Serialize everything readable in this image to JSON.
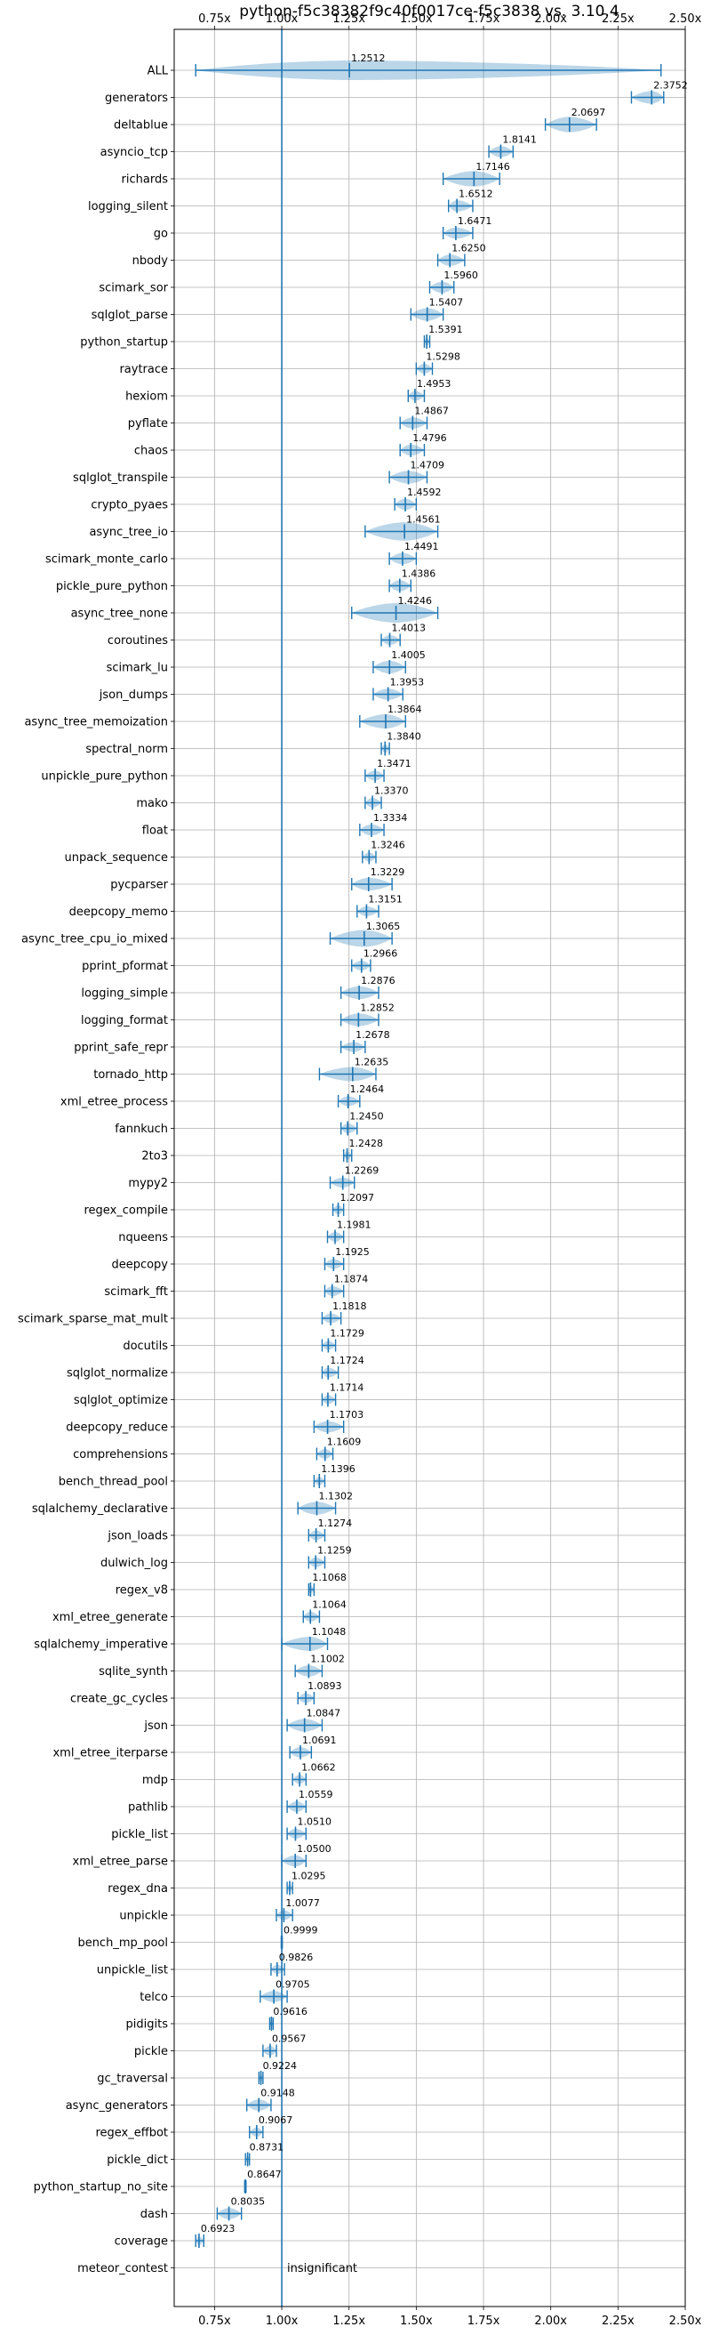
{
  "chart_data": {
    "type": "violin",
    "title": "python-f5c38382f9c40f0017ce-f5c3838 vs. 3.10.4",
    "xlim": [
      0.6,
      2.5
    ],
    "x_ticks": [
      0.75,
      1.0,
      1.25,
      1.5,
      1.75,
      2.0,
      2.25,
      2.5
    ],
    "x_tick_labels": [
      "0.75x",
      "1.00x",
      "1.25x",
      "1.50x",
      "1.75x",
      "2.00x",
      "2.25x",
      "2.50x"
    ],
    "reference_line": 1.0,
    "grid": true,
    "color": "#1f77b4",
    "annotation_text": "insignificant",
    "benchmarks": [
      {
        "name": "ALL",
        "value": 1.2512,
        "label": "1.2512",
        "min": 0.68,
        "max": 2.41,
        "spread": 0.45
      },
      {
        "name": "generators",
        "value": 2.3752,
        "label": "2.3752",
        "min": 2.3,
        "max": 2.42,
        "spread": 0.04
      },
      {
        "name": "deltablue",
        "value": 2.0697,
        "label": "2.0697",
        "min": 1.98,
        "max": 2.17,
        "spread": 0.06
      },
      {
        "name": "asyncio_tcp",
        "value": 1.8141,
        "label": "1.8141",
        "min": 1.77,
        "max": 1.86,
        "spread": 0.03
      },
      {
        "name": "richards",
        "value": 1.7146,
        "label": "1.7146",
        "min": 1.6,
        "max": 1.81,
        "spread": 0.06
      },
      {
        "name": "logging_silent",
        "value": 1.6512,
        "label": "1.6512",
        "min": 1.62,
        "max": 1.71,
        "spread": 0.03
      },
      {
        "name": "go",
        "value": 1.6471,
        "label": "1.6471",
        "min": 1.6,
        "max": 1.71,
        "spread": 0.03
      },
      {
        "name": "nbody",
        "value": 1.625,
        "label": "1.6250",
        "min": 1.58,
        "max": 1.68,
        "spread": 0.03
      },
      {
        "name": "scimark_sor",
        "value": 1.596,
        "label": "1.5960",
        "min": 1.55,
        "max": 1.64,
        "spread": 0.03
      },
      {
        "name": "sqlglot_parse",
        "value": 1.5407,
        "label": "1.5407",
        "min": 1.48,
        "max": 1.6,
        "spread": 0.04
      },
      {
        "name": "python_startup",
        "value": 1.5391,
        "label": "1.5391",
        "min": 1.53,
        "max": 1.55,
        "spread": 0.01
      },
      {
        "name": "raytrace",
        "value": 1.5298,
        "label": "1.5298",
        "min": 1.5,
        "max": 1.56,
        "spread": 0.02
      },
      {
        "name": "hexiom",
        "value": 1.4953,
        "label": "1.4953",
        "min": 1.47,
        "max": 1.53,
        "spread": 0.02
      },
      {
        "name": "pyflate",
        "value": 1.4867,
        "label": "1.4867",
        "min": 1.44,
        "max": 1.54,
        "spread": 0.03
      },
      {
        "name": "chaos",
        "value": 1.4796,
        "label": "1.4796",
        "min": 1.44,
        "max": 1.53,
        "spread": 0.03
      },
      {
        "name": "sqlglot_transpile",
        "value": 1.4709,
        "label": "1.4709",
        "min": 1.4,
        "max": 1.54,
        "spread": 0.04
      },
      {
        "name": "crypto_pyaes",
        "value": 1.4592,
        "label": "1.4592",
        "min": 1.42,
        "max": 1.5,
        "spread": 0.03
      },
      {
        "name": "async_tree_io",
        "value": 1.4561,
        "label": "1.4561",
        "min": 1.31,
        "max": 1.58,
        "spread": 0.08
      },
      {
        "name": "scimark_monte_carlo",
        "value": 1.4491,
        "label": "1.4491",
        "min": 1.4,
        "max": 1.5,
        "spread": 0.03
      },
      {
        "name": "pickle_pure_python",
        "value": 1.4386,
        "label": "1.4386",
        "min": 1.4,
        "max": 1.48,
        "spread": 0.03
      },
      {
        "name": "async_tree_none",
        "value": 1.4246,
        "label": "1.4246",
        "min": 1.26,
        "max": 1.58,
        "spread": 0.09
      },
      {
        "name": "coroutines",
        "value": 1.4013,
        "label": "1.4013",
        "min": 1.37,
        "max": 1.44,
        "spread": 0.02
      },
      {
        "name": "scimark_lu",
        "value": 1.4005,
        "label": "1.4005",
        "min": 1.34,
        "max": 1.46,
        "spread": 0.04
      },
      {
        "name": "json_dumps",
        "value": 1.3953,
        "label": "1.3953",
        "min": 1.34,
        "max": 1.45,
        "spread": 0.03
      },
      {
        "name": "async_tree_memoization",
        "value": 1.3864,
        "label": "1.3864",
        "min": 1.29,
        "max": 1.46,
        "spread": 0.05
      },
      {
        "name": "spectral_norm",
        "value": 1.384,
        "label": "1.3840",
        "min": 1.37,
        "max": 1.4,
        "spread": 0.01
      },
      {
        "name": "unpickle_pure_python",
        "value": 1.3471,
        "label": "1.3471",
        "min": 1.31,
        "max": 1.38,
        "spread": 0.02
      },
      {
        "name": "mako",
        "value": 1.337,
        "label": "1.3370",
        "min": 1.31,
        "max": 1.37,
        "spread": 0.02
      },
      {
        "name": "float",
        "value": 1.3334,
        "label": "1.3334",
        "min": 1.29,
        "max": 1.38,
        "spread": 0.03
      },
      {
        "name": "unpack_sequence",
        "value": 1.3246,
        "label": "1.3246",
        "min": 1.3,
        "max": 1.35,
        "spread": 0.015
      },
      {
        "name": "pycparser",
        "value": 1.3229,
        "label": "1.3229",
        "min": 1.26,
        "max": 1.41,
        "spread": 0.04
      },
      {
        "name": "deepcopy_memo",
        "value": 1.3151,
        "label": "1.3151",
        "min": 1.28,
        "max": 1.36,
        "spread": 0.02
      },
      {
        "name": "async_tree_cpu_io_mixed",
        "value": 1.3065,
        "label": "1.3065",
        "min": 1.18,
        "max": 1.41,
        "spread": 0.07
      },
      {
        "name": "pprint_pformat",
        "value": 1.2966,
        "label": "1.2966",
        "min": 1.26,
        "max": 1.33,
        "spread": 0.02
      },
      {
        "name": "logging_simple",
        "value": 1.2876,
        "label": "1.2876",
        "min": 1.22,
        "max": 1.36,
        "spread": 0.04
      },
      {
        "name": "logging_format",
        "value": 1.2852,
        "label": "1.2852",
        "min": 1.22,
        "max": 1.36,
        "spread": 0.04
      },
      {
        "name": "pprint_safe_repr",
        "value": 1.2678,
        "label": "1.2678",
        "min": 1.22,
        "max": 1.31,
        "spread": 0.02
      },
      {
        "name": "tornado_http",
        "value": 1.2635,
        "label": "1.2635",
        "min": 1.14,
        "max": 1.35,
        "spread": 0.05
      },
      {
        "name": "xml_etree_process",
        "value": 1.2464,
        "label": "1.2464",
        "min": 1.21,
        "max": 1.29,
        "spread": 0.02
      },
      {
        "name": "fannkuch",
        "value": 1.245,
        "label": "1.2450",
        "min": 1.22,
        "max": 1.28,
        "spread": 0.02
      },
      {
        "name": "2to3",
        "value": 1.2428,
        "label": "1.2428",
        "min": 1.23,
        "max": 1.26,
        "spread": 0.01
      },
      {
        "name": "mypy2",
        "value": 1.2269,
        "label": "1.2269",
        "min": 1.18,
        "max": 1.27,
        "spread": 0.02
      },
      {
        "name": "regex_compile",
        "value": 1.2097,
        "label": "1.2097",
        "min": 1.19,
        "max": 1.23,
        "spread": 0.015
      },
      {
        "name": "nqueens",
        "value": 1.1981,
        "label": "1.1981",
        "min": 1.17,
        "max": 1.23,
        "spread": 0.02
      },
      {
        "name": "deepcopy",
        "value": 1.1925,
        "label": "1.1925",
        "min": 1.16,
        "max": 1.23,
        "spread": 0.02
      },
      {
        "name": "scimark_fft",
        "value": 1.1874,
        "label": "1.1874",
        "min": 1.16,
        "max": 1.23,
        "spread": 0.02
      },
      {
        "name": "scimark_sparse_mat_mult",
        "value": 1.1818,
        "label": "1.1818",
        "min": 1.15,
        "max": 1.22,
        "spread": 0.02
      },
      {
        "name": "docutils",
        "value": 1.1729,
        "label": "1.1729",
        "min": 1.15,
        "max": 1.2,
        "spread": 0.015
      },
      {
        "name": "sqlglot_normalize",
        "value": 1.1724,
        "label": "1.1724",
        "min": 1.15,
        "max": 1.21,
        "spread": 0.02
      },
      {
        "name": "sqlglot_optimize",
        "value": 1.1714,
        "label": "1.1714",
        "min": 1.15,
        "max": 1.2,
        "spread": 0.015
      },
      {
        "name": "deepcopy_reduce",
        "value": 1.1703,
        "label": "1.1703",
        "min": 1.12,
        "max": 1.23,
        "spread": 0.03
      },
      {
        "name": "comprehensions",
        "value": 1.1609,
        "label": "1.1609",
        "min": 1.13,
        "max": 1.19,
        "spread": 0.02
      },
      {
        "name": "bench_thread_pool",
        "value": 1.1396,
        "label": "1.1396",
        "min": 1.12,
        "max": 1.16,
        "spread": 0.01
      },
      {
        "name": "sqlalchemy_declarative",
        "value": 1.1302,
        "label": "1.1302",
        "min": 1.06,
        "max": 1.2,
        "spread": 0.04
      },
      {
        "name": "json_loads",
        "value": 1.1274,
        "label": "1.1274",
        "min": 1.1,
        "max": 1.16,
        "spread": 0.02
      },
      {
        "name": "dulwich_log",
        "value": 1.1259,
        "label": "1.1259",
        "min": 1.1,
        "max": 1.16,
        "spread": 0.02
      },
      {
        "name": "regex_v8",
        "value": 1.1068,
        "label": "1.1068",
        "min": 1.1,
        "max": 1.12,
        "spread": 0.008
      },
      {
        "name": "xml_etree_generate",
        "value": 1.1064,
        "label": "1.1064",
        "min": 1.08,
        "max": 1.14,
        "spread": 0.02
      },
      {
        "name": "sqlalchemy_imperative",
        "value": 1.1048,
        "label": "1.1048",
        "min": 1.0,
        "max": 1.17,
        "spread": 0.05
      },
      {
        "name": "sqlite_synth",
        "value": 1.1002,
        "label": "1.1002",
        "min": 1.05,
        "max": 1.15,
        "spread": 0.03
      },
      {
        "name": "create_gc_cycles",
        "value": 1.0893,
        "label": "1.0893",
        "min": 1.06,
        "max": 1.12,
        "spread": 0.02
      },
      {
        "name": "json",
        "value": 1.0847,
        "label": "1.0847",
        "min": 1.02,
        "max": 1.15,
        "spread": 0.04
      },
      {
        "name": "xml_etree_iterparse",
        "value": 1.0691,
        "label": "1.0691",
        "min": 1.03,
        "max": 1.11,
        "spread": 0.025
      },
      {
        "name": "mdp",
        "value": 1.0662,
        "label": "1.0662",
        "min": 1.04,
        "max": 1.09,
        "spread": 0.015
      },
      {
        "name": "pathlib",
        "value": 1.0559,
        "label": "1.0559",
        "min": 1.02,
        "max": 1.09,
        "spread": 0.025
      },
      {
        "name": "pickle_list",
        "value": 1.051,
        "label": "1.0510",
        "min": 1.02,
        "max": 1.09,
        "spread": 0.02
      },
      {
        "name": "xml_etree_parse",
        "value": 1.05,
        "label": "1.0500",
        "min": 1.0,
        "max": 1.09,
        "spread": 0.03
      },
      {
        "name": "regex_dna",
        "value": 1.0295,
        "label": "1.0295",
        "min": 1.02,
        "max": 1.04,
        "spread": 0.008
      },
      {
        "name": "unpickle",
        "value": 1.0077,
        "label": "1.0077",
        "min": 0.98,
        "max": 1.04,
        "spread": 0.02
      },
      {
        "name": "bench_mp_pool",
        "value": 0.9999,
        "label": "0.9999",
        "min": 0.998,
        "max": 1.002,
        "spread": 0.0
      },
      {
        "name": "unpickle_list",
        "value": 0.9826,
        "label": "0.9826",
        "min": 0.96,
        "max": 1.01,
        "spread": 0.015
      },
      {
        "name": "telco",
        "value": 0.9705,
        "label": "0.9705",
        "min": 0.92,
        "max": 1.02,
        "spread": 0.03
      },
      {
        "name": "pidigits",
        "value": 0.9616,
        "label": "0.9616",
        "min": 0.955,
        "max": 0.968,
        "spread": 0.005
      },
      {
        "name": "pickle",
        "value": 0.9567,
        "label": "0.9567",
        "min": 0.93,
        "max": 0.98,
        "spread": 0.02
      },
      {
        "name": "gc_traversal",
        "value": 0.9224,
        "label": "0.9224",
        "min": 0.915,
        "max": 0.93,
        "spread": 0.005
      },
      {
        "name": "async_generators",
        "value": 0.9148,
        "label": "0.9148",
        "min": 0.87,
        "max": 0.96,
        "spread": 0.03
      },
      {
        "name": "regex_effbot",
        "value": 0.9067,
        "label": "0.9067",
        "min": 0.88,
        "max": 0.93,
        "spread": 0.015
      },
      {
        "name": "pickle_dict",
        "value": 0.8731,
        "label": "0.8731",
        "min": 0.865,
        "max": 0.88,
        "spread": 0.006
      },
      {
        "name": "python_startup_no_site",
        "value": 0.8647,
        "label": "0.8647",
        "min": 0.862,
        "max": 0.867,
        "spread": 0.002
      },
      {
        "name": "dash",
        "value": 0.8035,
        "label": "0.8035",
        "min": 0.76,
        "max": 0.85,
        "spread": 0.03
      },
      {
        "name": "coverage",
        "value": 0.6923,
        "label": "0.6923",
        "min": 0.68,
        "max": 0.71,
        "spread": 0.01
      },
      {
        "name": "meteor_contest",
        "value": null,
        "label": "",
        "annotation": true
      }
    ]
  }
}
